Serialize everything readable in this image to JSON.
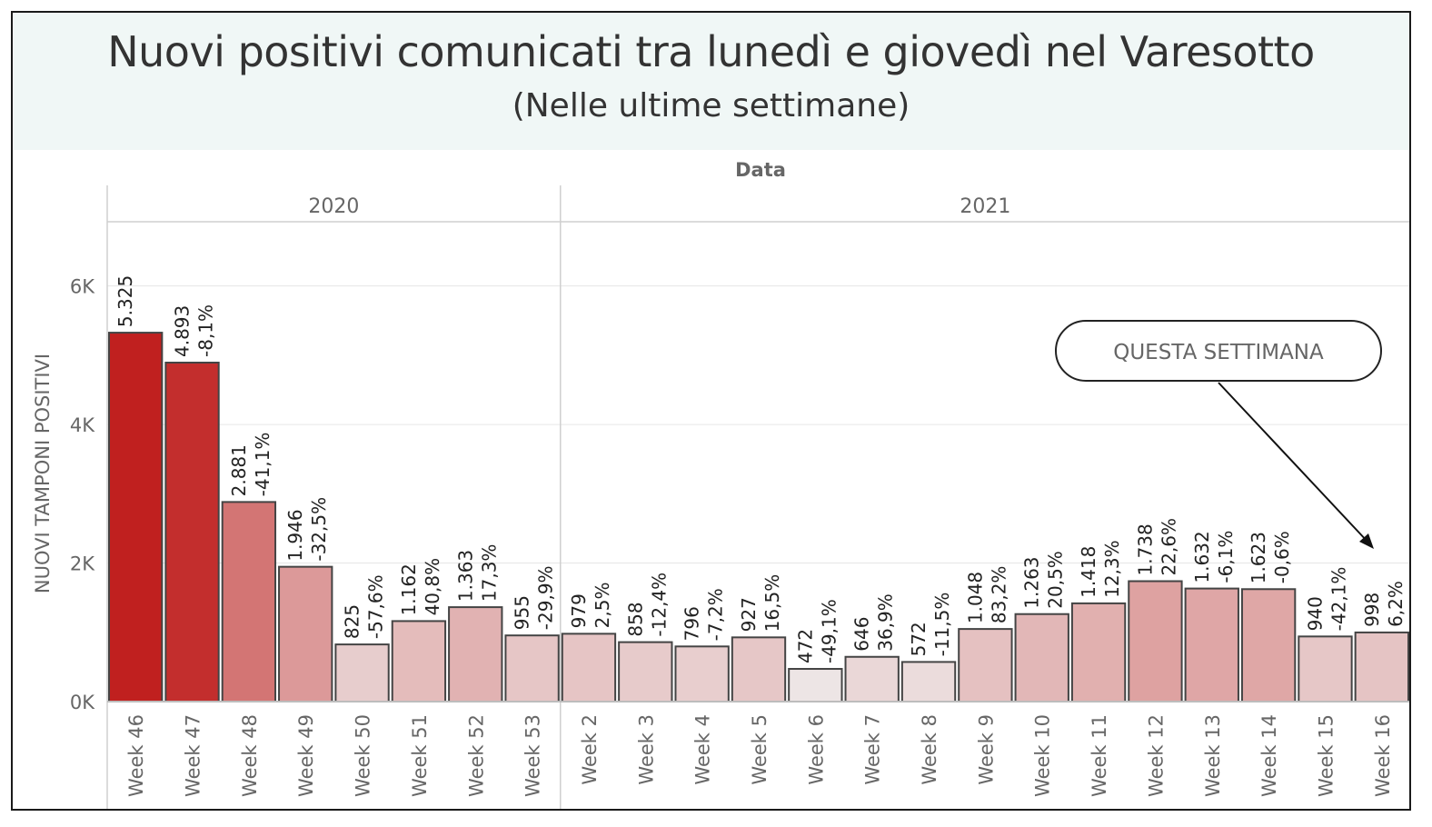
{
  "title": "Nuovi positivi comunicati tra lunedì e giovedì nel Varesotto",
  "subtitle": "(Nelle ultime settimane)",
  "callout": "QUESTA SETTIMANA",
  "chart_data": {
    "type": "bar",
    "column_header": "Data",
    "ylabel": "NUOVI TAMPONI POSITIVI",
    "ylim": [
      0,
      6900
    ],
    "yticks": [
      0,
      2000,
      4000,
      6000
    ],
    "ytick_labels": [
      "0K",
      "2K",
      "4K",
      "6K"
    ],
    "grid": true,
    "groups": [
      {
        "year": "2020",
        "categories": [
          "Week 46",
          "Week 47",
          "Week 48",
          "Week 49",
          "Week 50",
          "Week 51",
          "Week 52",
          "Week 53"
        ],
        "values": [
          5325,
          4893,
          2881,
          1946,
          825,
          1162,
          1363,
          955
        ],
        "value_labels": [
          "5.325",
          "4.893",
          "2.881",
          "1.946",
          "825",
          "1.162",
          "1.363",
          "955"
        ],
        "pct_labels": [
          "",
          "-8,1%",
          "-41,1%",
          "-32,5%",
          "-57,6%",
          "40,8%",
          "17,3%",
          "-29,9%"
        ]
      },
      {
        "year": "2021",
        "categories": [
          "Week 2",
          "Week 3",
          "Week 4",
          "Week 5",
          "Week 6",
          "Week 7",
          "Week 8",
          "Week 9",
          "Week 10",
          "Week 11",
          "Week 12",
          "Week 13",
          "Week 14",
          "Week 15",
          "Week 16"
        ],
        "values": [
          979,
          858,
          796,
          927,
          472,
          646,
          572,
          1048,
          1263,
          1418,
          1738,
          1632,
          1623,
          940,
          998
        ],
        "value_labels": [
          "979",
          "858",
          "796",
          "927",
          "472",
          "646",
          "572",
          "1.048",
          "1.263",
          "1.418",
          "1.738",
          "1.632",
          "1.623",
          "940",
          "998"
        ],
        "pct_labels": [
          "2,5%",
          "-12,4%",
          "-7,2%",
          "16,5%",
          "-49,1%",
          "36,9%",
          "-11,5%",
          "83,2%",
          "20,5%",
          "12,3%",
          "22,6%",
          "-6,1%",
          "-0,6%",
          "-42,1%",
          "6,2%"
        ]
      }
    ],
    "colors": {
      "bar_high": "#c0201f",
      "bar_low": "#ede5e5",
      "bar_stroke": "#444444",
      "grid": "#e6e6e6",
      "header_bg": "#f0f7f6"
    }
  }
}
